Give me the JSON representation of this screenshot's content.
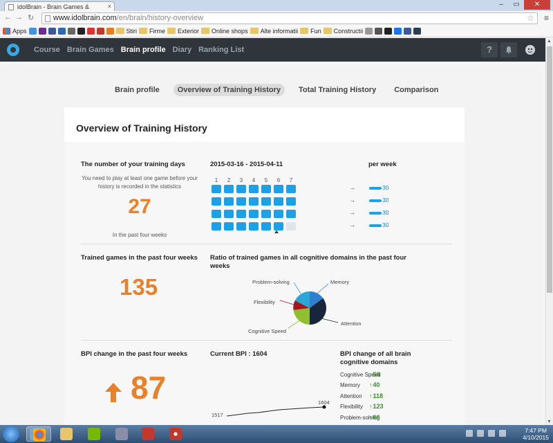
{
  "browser": {
    "tab_title": "idolBrain - Brain Games &",
    "url_host": "www.idolbrain.com",
    "url_path": "/en/brain/history-overview",
    "bookmarks": [
      {
        "label": "Apps",
        "kind": "apps"
      },
      {
        "label": "",
        "kind": "icon",
        "color": "#4a90e2"
      },
      {
        "label": "",
        "kind": "icon",
        "color": "#6b2d8f"
      },
      {
        "label": "",
        "kind": "icon",
        "color": "#3b5998"
      },
      {
        "label": "",
        "kind": "icon",
        "color": "#2b6cb0"
      },
      {
        "label": "",
        "kind": "icon",
        "color": "#666666"
      },
      {
        "label": "",
        "kind": "icon",
        "color": "#222222"
      },
      {
        "label": "",
        "kind": "icon",
        "color": "#d33"
      },
      {
        "label": "",
        "kind": "icon",
        "color": "#c0392b"
      },
      {
        "label": "",
        "kind": "icon",
        "color": "#e67e22"
      },
      {
        "label": "Stiri",
        "kind": "folder"
      },
      {
        "label": "Firme",
        "kind": "folder"
      },
      {
        "label": "Exterior",
        "kind": "folder"
      },
      {
        "label": "Online shops",
        "kind": "folder"
      },
      {
        "label": "Alte informatii",
        "kind": "folder"
      },
      {
        "label": "Fun",
        "kind": "folder"
      },
      {
        "label": "Constructii",
        "kind": "folder"
      },
      {
        "label": "",
        "kind": "icon",
        "color": "#999"
      },
      {
        "label": "",
        "kind": "icon",
        "color": "#555"
      },
      {
        "label": "",
        "kind": "icon",
        "color": "#222"
      },
      {
        "label": "",
        "kind": "icon",
        "color": "#1a73e8"
      },
      {
        "label": "",
        "kind": "icon",
        "color": "#3b5998"
      },
      {
        "label": "",
        "kind": "icon",
        "color": "#2c3e50"
      }
    ]
  },
  "site": {
    "nav": [
      "Course",
      "Brain Games",
      "Brain profile",
      "Diary",
      "Ranking List"
    ],
    "active_nav": "Brain profile",
    "help_icon_label": "?"
  },
  "subtabs": [
    "Brain profile",
    "Overview of Training History",
    "Total Training History",
    "Comparison"
  ],
  "active_subtab": "Overview of Training History",
  "card_title": "Overview of Training History",
  "training_days": {
    "heading": "The number of your training days",
    "note": "You need to play at least one game before your history is recorded in the statistics",
    "value": "27",
    "caption": "In the past four weeks"
  },
  "calendar": {
    "date_range": "2015-03-16 - 2015-04-11",
    "day_numbers": [
      "1",
      "2",
      "3",
      "4",
      "5",
      "6",
      "7"
    ],
    "weeks": [
      [
        1,
        1,
        1,
        1,
        1,
        1,
        1
      ],
      [
        1,
        1,
        1,
        1,
        1,
        1,
        1
      ],
      [
        1,
        1,
        1,
        1,
        1,
        1,
        1
      ],
      [
        1,
        1,
        1,
        1,
        1,
        1,
        0
      ]
    ],
    "per_week_label": "per week",
    "per_week_arrow": "→",
    "per_week_values": [
      "30",
      "30",
      "30",
      "30"
    ],
    "bar_color": "#1da1e6"
  },
  "trained_games": {
    "heading": "Trained games in the past four weeks",
    "value": "135"
  },
  "ratio": {
    "heading": "Ratio of trained games in all cognitive domains in the past four weeks",
    "domains": [
      {
        "name": "Memory",
        "color": "#2f7fd1"
      },
      {
        "name": "Attention",
        "color": "#17263a"
      },
      {
        "name": "Cognitive Speed",
        "color": "#8fbf2f"
      },
      {
        "name": "Flexibility",
        "color": "#a4161a"
      },
      {
        "name": "Problem-solving",
        "color": "#2aa7d6"
      }
    ]
  },
  "bpi_change": {
    "heading": "BPI change in the past four weeks",
    "value": "87",
    "arrow": "up"
  },
  "current_bpi": {
    "heading": "Current BPI : 1604",
    "start_label": "1517",
    "end_label": "1604"
  },
  "bpi_domains": {
    "heading": "BPI change of all brain cognitive domains",
    "arrow_glyph": "🠕",
    "items": [
      {
        "name": "Cognitive Speed",
        "value": "58"
      },
      {
        "name": "Memory",
        "value": "40"
      },
      {
        "name": "Attention",
        "value": "118"
      },
      {
        "name": "Flexibility",
        "value": "123"
      },
      {
        "name": "Problem-solving",
        "value": "66"
      }
    ]
  },
  "taskbar": {
    "time": "7:47 PM",
    "date": "4/10/2015"
  }
}
